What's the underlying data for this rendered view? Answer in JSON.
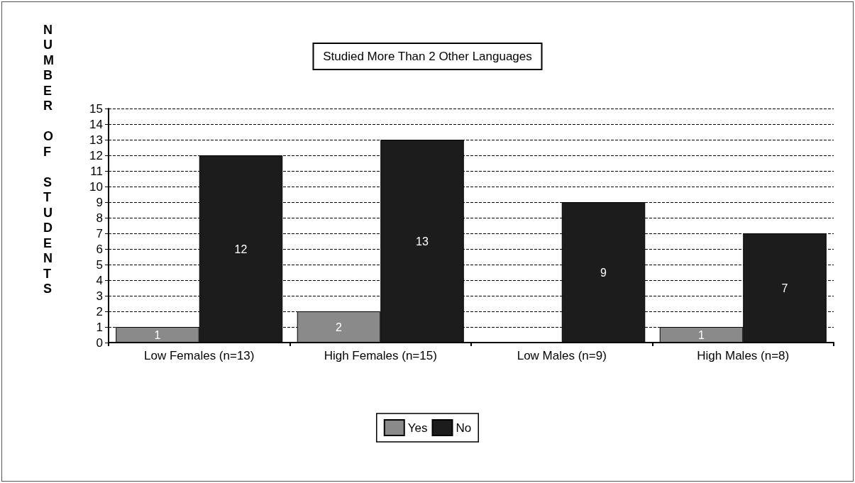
{
  "chart_data": {
    "type": "bar",
    "title": "Studied More Than 2 Other Languages",
    "ylabel": "NUMBER OF STUDENTS",
    "categories": [
      "Low Females (n=13)",
      "High Females (n=15)",
      "Low Males (n=9)",
      "High Males (n=8)"
    ],
    "series": [
      {
        "name": "Yes",
        "color": "#8a8a8a",
        "values": [
          1,
          2,
          0,
          1
        ],
        "value_labels": [
          "1",
          "2",
          null,
          "1"
        ]
      },
      {
        "name": "No",
        "color": "#1c1c1c",
        "values": [
          12,
          13,
          9,
          7
        ],
        "value_labels": [
          "12",
          "13",
          "9",
          "7"
        ]
      }
    ],
    "ylim": [
      0,
      15
    ],
    "yticks": [
      0,
      1,
      2,
      3,
      4,
      5,
      6,
      7,
      8,
      9,
      10,
      11,
      12,
      13,
      14,
      15
    ],
    "grid": "y",
    "legend": "bottom"
  }
}
